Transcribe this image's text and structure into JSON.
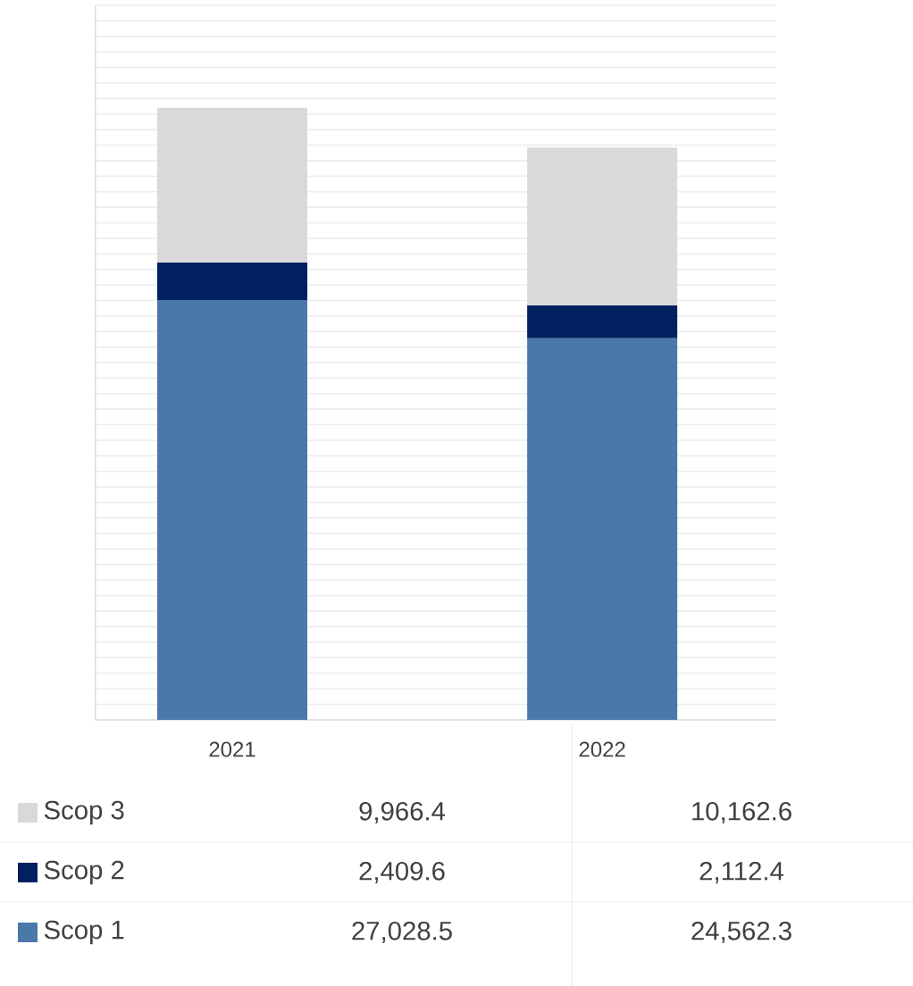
{
  "chart_data": {
    "type": "bar",
    "stacked": true,
    "categories": [
      "2021",
      "2022"
    ],
    "series": [
      {
        "name": "Scop 1",
        "color": "#4a78a8",
        "values": [
          27028.5,
          24562.3
        ],
        "value_labels": [
          "27,028.5",
          "24,562.3"
        ]
      },
      {
        "name": "Scop 2",
        "color": "#002060",
        "values": [
          2409.6,
          2112.4
        ],
        "value_labels": [
          "2,409.6",
          "2,112.4"
        ]
      },
      {
        "name": "Scop 3",
        "color": "#d9d9d9",
        "values": [
          9966.4,
          10162.6
        ],
        "value_labels": [
          "9,966.4",
          "10,162.6"
        ]
      }
    ],
    "ylim": [
      0,
      46000
    ],
    "yticks": [
      {
        "value": 0,
        "label": null
      },
      {
        "value": 1000,
        "label": null
      },
      {
        "value": 2000,
        "label": null
      },
      {
        "value": 3000,
        "label": null
      },
      {
        "value": 4000,
        "label": null
      },
      {
        "value": 5000,
        "label": null
      },
      {
        "value": 6000,
        "label": null
      },
      {
        "value": 7000,
        "label": null
      },
      {
        "value": 8000,
        "label": null
      },
      {
        "value": 9000,
        "label": null
      },
      {
        "value": 10000,
        "label": null
      },
      {
        "value": 11000,
        "label": null
      },
      {
        "value": 12000,
        "label": null
      },
      {
        "value": 13000,
        "label": null
      },
      {
        "value": 14000,
        "label": null
      },
      {
        "value": 15000,
        "label": null
      },
      {
        "value": 16000,
        "label": null
      },
      {
        "value": 17000,
        "label": null
      },
      {
        "value": 18000,
        "label": null
      },
      {
        "value": 19000,
        "label": null
      },
      {
        "value": 20000,
        "label": null
      },
      {
        "value": 21000,
        "label": null
      },
      {
        "value": 22000,
        "label": null
      },
      {
        "value": 23000,
        "label": null
      },
      {
        "value": 24000,
        "label": null
      },
      {
        "value": 25000,
        "label": null
      },
      {
        "value": 26000,
        "label": null
      },
      {
        "value": 27000,
        "label": null
      },
      {
        "value": 28000,
        "label": null
      },
      {
        "value": 29000,
        "label": null
      },
      {
        "value": 30000,
        "label": null
      },
      {
        "value": 31000,
        "label": null
      },
      {
        "value": 32000,
        "label": null
      },
      {
        "value": 33000,
        "label": null
      },
      {
        "value": 34000,
        "label": null
      },
      {
        "value": 35000,
        "label": null
      },
      {
        "value": 36000,
        "label": null
      },
      {
        "value": 37000,
        "label": null
      },
      {
        "value": 38000,
        "label": null
      },
      {
        "value": 39000,
        "label": null
      },
      {
        "value": 40000,
        "label": null
      },
      {
        "value": 41000,
        "label": null
      },
      {
        "value": 42000,
        "label": null
      },
      {
        "value": 43000,
        "label": null
      },
      {
        "value": 44000,
        "label": null
      },
      {
        "value": 45000,
        "label": null
      },
      {
        "value": 46000,
        "label": null
      }
    ],
    "grid": "y",
    "legend": "bottom left",
    "data_labels": true
  }
}
